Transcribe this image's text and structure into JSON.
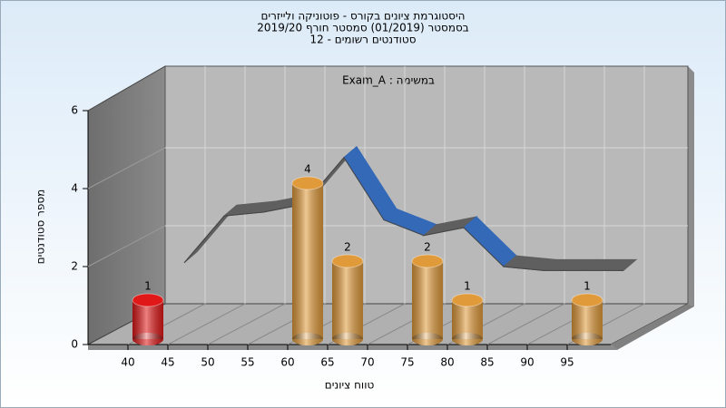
{
  "chart_data": {
    "type": "bar",
    "title": [
      "היסטוגרמת ציונים בקורס - פוטוניקה ולייזרים",
      "בסמסטר  (01/2019)  סמסטר חורף 2019/20",
      "סטודנטים רשומים - 12"
    ],
    "annotation": "Exam_A : במשימה",
    "x_label": "טווח ציונים",
    "y_label": "מספר סטודנטים",
    "categories": [
      "40",
      "45",
      "50",
      "55",
      "60",
      "65",
      "70",
      "75",
      "80",
      "85",
      "90",
      "95"
    ],
    "values": [
      1,
      0,
      0,
      0,
      4,
      2,
      0,
      2,
      1,
      0,
      0,
      1
    ],
    "colors": [
      "#e01818",
      "#e09a3a",
      "#e09a3a",
      "#e09a3a",
      "#e09a3a",
      "#e09a3a",
      "#e09a3a",
      "#e09a3a",
      "#e09a3a",
      "#e09a3a",
      "#e09a3a",
      "#e09a3a"
    ],
    "curve": {
      "values": [
        1.4,
        2.6,
        2.7,
        2.9,
        4.1,
        2.5,
        2.1,
        2.3,
        1.3,
        1.2,
        1.2,
        1.2
      ],
      "color": "#5f5f5f",
      "shade_color": "#3469b8"
    },
    "ylim": [
      0,
      6
    ],
    "yticks": [
      0,
      2,
      4,
      6
    ],
    "grid": true
  }
}
